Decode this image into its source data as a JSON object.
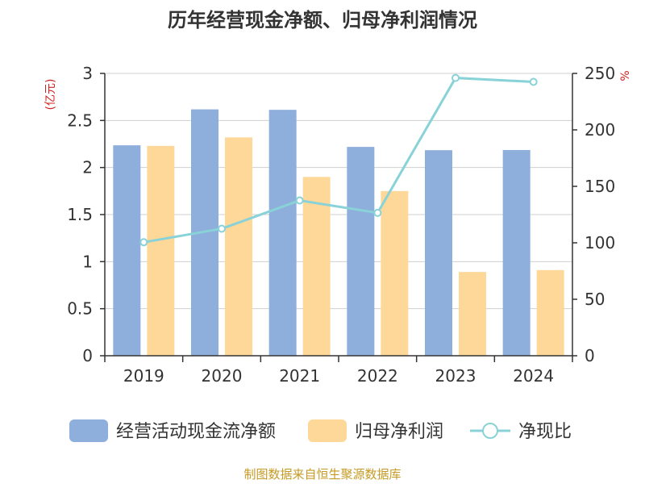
{
  "chart_data": {
    "type": "bar",
    "title": "历年经营现金净额、归母净利润情况",
    "categories": [
      "2019",
      "2020",
      "2021",
      "2022",
      "2023",
      "2024"
    ],
    "series": [
      {
        "name": "经营活动现金流净额",
        "values": [
          2.236,
          2.618,
          2.613,
          2.219,
          2.184,
          2.186
        ],
        "color": "#8eaedc"
      },
      {
        "name": "归母净利润",
        "values": [
          2.23,
          2.32,
          1.9,
          1.75,
          0.89,
          0.91
        ],
        "color": "#fdd898"
      }
    ],
    "line": {
      "name": "净现比",
      "values": [
        100.5,
        112.5,
        137.5,
        126.5,
        246,
        242.5
      ],
      "color": "#88d2d8"
    },
    "y_left": {
      "unit": "(亿元)",
      "ticks": [
        "0",
        "0.5",
        "1",
        "1.5",
        "2",
        "2.5",
        "3"
      ],
      "range": [
        0,
        3
      ]
    },
    "y_right": {
      "unit": "%",
      "ticks": [
        "0",
        "50",
        "100",
        "150",
        "200",
        "250"
      ],
      "range": [
        0,
        250
      ]
    }
  },
  "footer": "制图数据来自恒生聚源数据库"
}
